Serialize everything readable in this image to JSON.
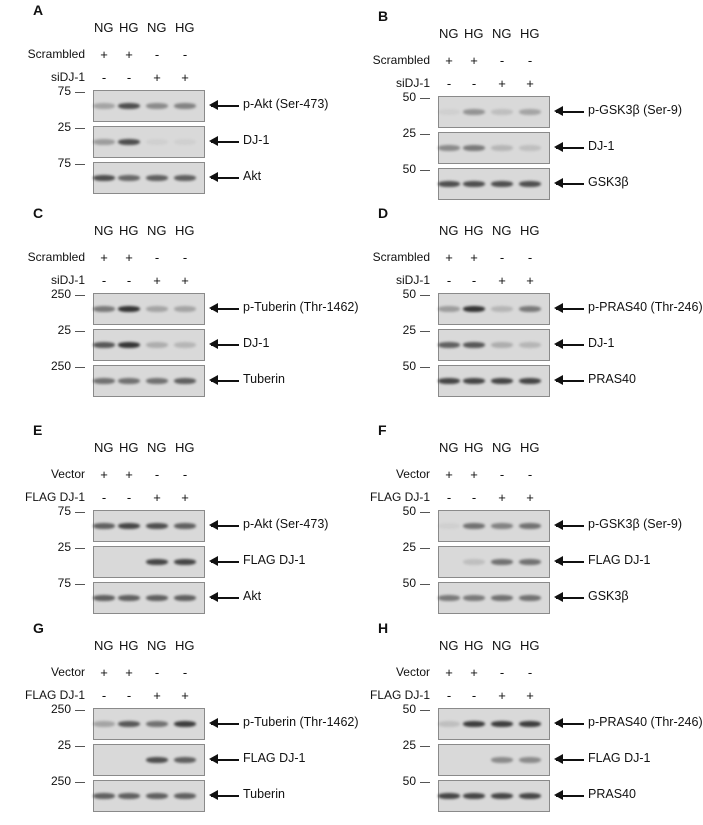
{
  "lanes": [
    "NG",
    "HG",
    "NG",
    "HG"
  ],
  "panels": [
    {
      "id": "A",
      "ctrl": "Scrambled",
      "treat": "siDJ-1",
      "ctrl_signs": [
        "+",
        "+",
        "-",
        "-"
      ],
      "treat_signs": [
        "-",
        "-",
        "+",
        "+"
      ],
      "blots": [
        {
          "mw": "75",
          "label": "p-Akt (Ser-473)",
          "bands": [
            0.3,
            0.8,
            0.45,
            0.5
          ]
        },
        {
          "mw": "25",
          "label": "DJ-1",
          "bands": [
            0.35,
            0.8,
            0.05,
            0.05
          ]
        },
        {
          "mw": "75",
          "label": "Akt",
          "bands": [
            0.8,
            0.65,
            0.7,
            0.7
          ]
        }
      ]
    },
    {
      "id": "B",
      "ctrl": "Scrambled",
      "treat": "siDJ-1",
      "ctrl_signs": [
        "+",
        "+",
        "-",
        "-"
      ],
      "treat_signs": [
        "-",
        "-",
        "+",
        "+"
      ],
      "blots": [
        {
          "mw": "50",
          "label": "p-GSK3β (Ser-9)",
          "bands": [
            0.05,
            0.4,
            0.15,
            0.3
          ]
        },
        {
          "mw": "25",
          "label": "DJ-1",
          "bands": [
            0.45,
            0.55,
            0.2,
            0.15
          ]
        },
        {
          "mw": "50",
          "label": "GSK3β",
          "bands": [
            0.8,
            0.8,
            0.8,
            0.8
          ]
        }
      ]
    },
    {
      "id": "C",
      "ctrl": "Scrambled",
      "treat": "siDJ-1",
      "ctrl_signs": [
        "+",
        "+",
        "-",
        "-"
      ],
      "treat_signs": [
        "-",
        "-",
        "+",
        "+"
      ],
      "blots": [
        {
          "mw": "250",
          "label": "p-Tuberin (Thr-1462)",
          "bands": [
            0.55,
            0.95,
            0.3,
            0.3
          ]
        },
        {
          "mw": "25",
          "label": "DJ-1",
          "bands": [
            0.75,
            0.95,
            0.25,
            0.2
          ]
        },
        {
          "mw": "250",
          "label": "Tuberin",
          "bands": [
            0.6,
            0.6,
            0.6,
            0.7
          ]
        }
      ]
    },
    {
      "id": "D",
      "ctrl": "Scrambled",
      "treat": "siDJ-1",
      "ctrl_signs": [
        "+",
        "+",
        "-",
        "-"
      ],
      "treat_signs": [
        "-",
        "-",
        "+",
        "+"
      ],
      "blots": [
        {
          "mw": "50",
          "label": "p-PRAS40 (Thr-246)",
          "bands": [
            0.35,
            0.95,
            0.2,
            0.55
          ]
        },
        {
          "mw": "25",
          "label": "DJ-1",
          "bands": [
            0.7,
            0.75,
            0.25,
            0.2
          ]
        },
        {
          "mw": "50",
          "label": "PRAS40",
          "bands": [
            0.85,
            0.85,
            0.85,
            0.85
          ]
        }
      ]
    },
    {
      "id": "E",
      "ctrl": "Vector",
      "treat": "FLAG DJ-1",
      "ctrl_signs": [
        "+",
        "+",
        "-",
        "-"
      ],
      "treat_signs": [
        "-",
        "-",
        "+",
        "+"
      ],
      "blots": [
        {
          "mw": "75",
          "label": "p-Akt (Ser-473)",
          "bands": [
            0.7,
            0.85,
            0.8,
            0.7
          ]
        },
        {
          "mw": "25",
          "label": "FLAG DJ-1",
          "bands": [
            0.0,
            0.0,
            0.85,
            0.85
          ]
        },
        {
          "mw": "75",
          "label": "Akt",
          "bands": [
            0.7,
            0.7,
            0.7,
            0.7
          ]
        }
      ]
    },
    {
      "id": "F",
      "ctrl": "Vector",
      "treat": "FLAG DJ-1",
      "ctrl_signs": [
        "+",
        "+",
        "-",
        "-"
      ],
      "treat_signs": [
        "-",
        "-",
        "+",
        "+"
      ],
      "blots": [
        {
          "mw": "50",
          "label": "p-GSK3β (Ser-9)",
          "bands": [
            0.05,
            0.6,
            0.5,
            0.6
          ]
        },
        {
          "mw": "25",
          "label": "FLAG DJ-1",
          "bands": [
            0.0,
            0.15,
            0.6,
            0.6
          ]
        },
        {
          "mw": "50",
          "label": "GSK3β",
          "bands": [
            0.55,
            0.55,
            0.6,
            0.6
          ]
        }
      ]
    },
    {
      "id": "G",
      "ctrl": "Vector",
      "treat": "FLAG DJ-1",
      "ctrl_signs": [
        "+",
        "+",
        "-",
        "-"
      ],
      "treat_signs": [
        "-",
        "-",
        "+",
        "+"
      ],
      "blots": [
        {
          "mw": "250",
          "label": "p-Tuberin (Thr-1462)",
          "bands": [
            0.3,
            0.75,
            0.6,
            0.9
          ]
        },
        {
          "mw": "25",
          "label": "FLAG DJ-1",
          "bands": [
            0.0,
            0.0,
            0.8,
            0.7
          ]
        },
        {
          "mw": "250",
          "label": "Tuberin",
          "bands": [
            0.7,
            0.7,
            0.7,
            0.7
          ]
        }
      ]
    },
    {
      "id": "H",
      "ctrl": "Vector",
      "treat": "FLAG DJ-1",
      "ctrl_signs": [
        "+",
        "+",
        "-",
        "-"
      ],
      "treat_signs": [
        "-",
        "-",
        "+",
        "+"
      ],
      "blots": [
        {
          "mw": "50",
          "label": "p-PRAS40 (Thr-246)",
          "bands": [
            0.15,
            0.9,
            0.9,
            0.9
          ]
        },
        {
          "mw": "25",
          "label": "FLAG DJ-1",
          "bands": [
            0.0,
            0.0,
            0.45,
            0.45
          ]
        },
        {
          "mw": "50",
          "label": "PRAS40",
          "bands": [
            0.85,
            0.85,
            0.85,
            0.85
          ]
        }
      ]
    }
  ]
}
